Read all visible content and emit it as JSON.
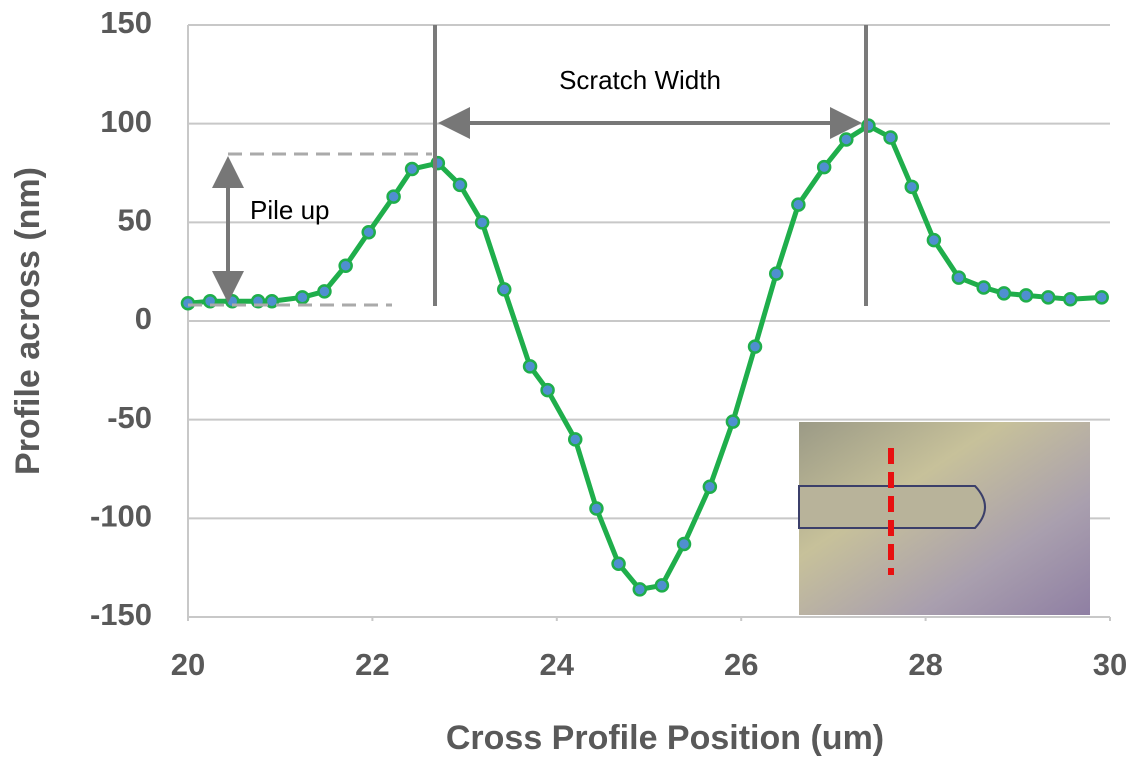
{
  "chart_data": {
    "type": "line",
    "x_label": "Cross Profile Position (um)",
    "y_label": "Profile across (nm)",
    "annotations": [
      "Scratch Width",
      "Pile up"
    ],
    "x": [
      20.0,
      20.24,
      20.48,
      20.76,
      20.91,
      21.24,
      21.48,
      21.71,
      21.96,
      22.23,
      22.43,
      22.71,
      22.95,
      23.19,
      23.43,
      23.71,
      23.9,
      24.2,
      24.43,
      24.67,
      24.9,
      25.14,
      25.38,
      25.66,
      25.91,
      26.15,
      26.38,
      26.62,
      26.9,
      27.14,
      27.38,
      27.62,
      27.85,
      28.09,
      28.36,
      28.63,
      28.85,
      29.09,
      29.33,
      29.57,
      29.91
    ],
    "series": [
      {
        "color": "#1fae4b",
        "values": [
          9,
          10,
          10,
          10,
          10,
          12,
          15,
          28,
          45,
          63,
          77,
          80,
          69,
          50,
          16,
          -23,
          -35,
          -60,
          -95,
          -123,
          -136,
          -134,
          -113,
          -84,
          -51,
          -13,
          24,
          59,
          78,
          92,
          99,
          93,
          68,
          41,
          22,
          17,
          14,
          13,
          12,
          11,
          12
        ]
      }
    ],
    "marker_color": "#4f8fd0",
    "xlim": [
      20,
      30
    ],
    "xticks": [
      20,
      22,
      24,
      26,
      28,
      30
    ],
    "ylim": [
      -150,
      150
    ],
    "yticks": [
      -150,
      -100,
      -50,
      0,
      50,
      100,
      150
    ],
    "grid": true
  }
}
